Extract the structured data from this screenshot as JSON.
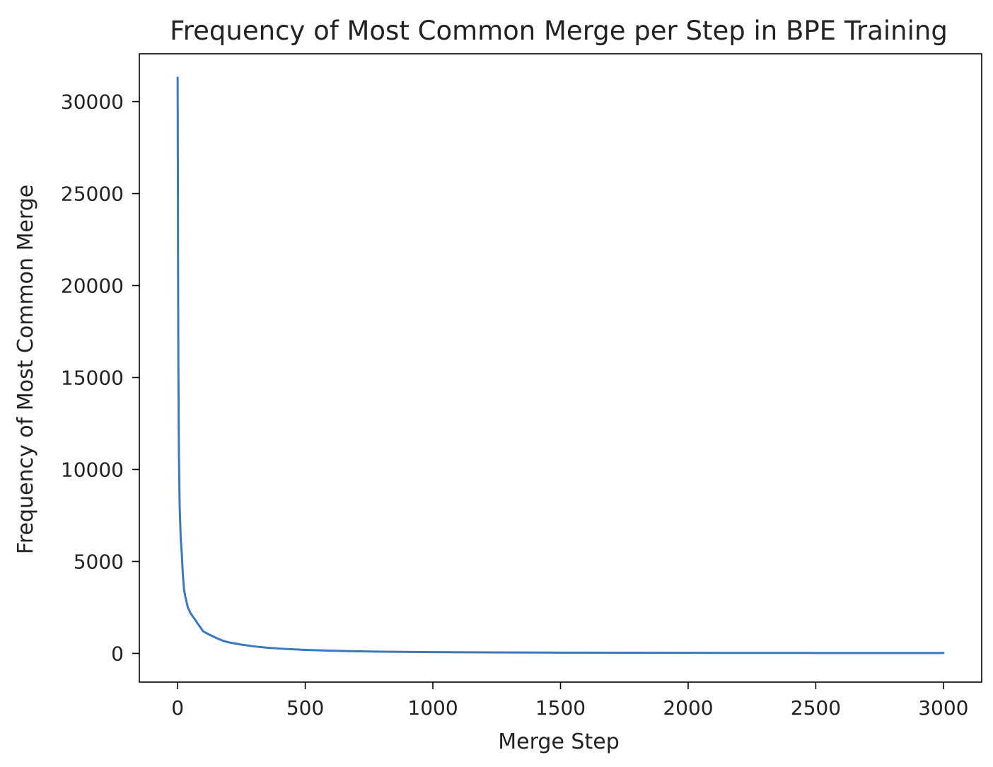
{
  "chart_data": {
    "type": "line",
    "title": "Frequency of Most Common Merge per Step in BPE Training",
    "xlabel": "Merge Step",
    "ylabel": "Frequency of Most Common Merge",
    "xlim": [
      -150,
      3150
    ],
    "ylim": [
      -1560,
      32600
    ],
    "x_ticks": [
      0,
      500,
      1000,
      1500,
      2000,
      2500,
      3000
    ],
    "y_ticks": [
      0,
      5000,
      10000,
      15000,
      20000,
      25000,
      30000
    ],
    "x_tick_labels": [
      "0",
      "500",
      "1000",
      "1500",
      "2000",
      "2500",
      "3000"
    ],
    "y_tick_labels": [
      "0",
      "5000",
      "10000",
      "15000",
      "20000",
      "25000",
      "30000"
    ],
    "grid": false,
    "legend": "none",
    "series": [
      {
        "color": "#3a78c2",
        "x": [
          0,
          1,
          2,
          3,
          5,
          8,
          12,
          16,
          20,
          25,
          30,
          35,
          40,
          50,
          60,
          70,
          80,
          90,
          100,
          120,
          150,
          175,
          200,
          250,
          300,
          350,
          400,
          500,
          600,
          700,
          800,
          1000,
          1200,
          1500,
          2000,
          2500,
          3000
        ],
        "y": [
          31300,
          26000,
          19500,
          15500,
          11000,
          8000,
          6300,
          5500,
          4400,
          3500,
          3100,
          2800,
          2500,
          2200,
          2000,
          1800,
          1600,
          1400,
          1200,
          1050,
          850,
          700,
          600,
          480,
          380,
          310,
          260,
          190,
          145,
          115,
          95,
          70,
          55,
          42,
          30,
          24,
          20
        ]
      }
    ]
  }
}
